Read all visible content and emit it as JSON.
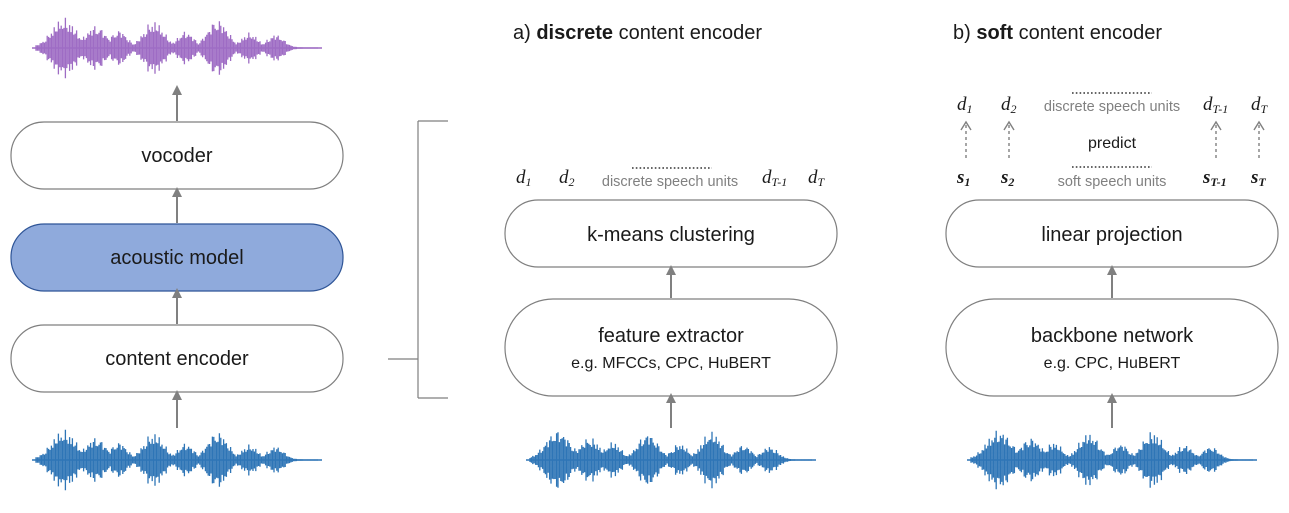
{
  "pipeline": {
    "vocoder": "vocoder",
    "acoustic_model": "acoustic model",
    "content_encoder": "content encoder"
  },
  "panel_a": {
    "prefix": "a) ",
    "bold": "discrete",
    "rest": " content encoder",
    "box_top": "k-means clustering",
    "box_bottom": "feature extractor",
    "box_bottom_sub": "e.g. MFCCs, CPC, HuBERT",
    "units_label": "discrete speech units",
    "d": "d",
    "sub_1": "1",
    "sub_2": "2",
    "sub_Tm1": "T-1",
    "sub_T": "T"
  },
  "panel_b": {
    "prefix": "b) ",
    "bold": "soft",
    "rest": " content encoder",
    "box_top": "linear projection",
    "box_bottom": "backbone network",
    "box_bottom_sub": "e.g. CPC, HuBERT",
    "discrete_units_label": "discrete speech units",
    "soft_units_label": "soft speech units",
    "predict": "predict",
    "d": "d",
    "s": "s",
    "sub_1": "1",
    "sub_2": "2",
    "sub_Tm1": "T-1",
    "sub_T": "T"
  },
  "colors": {
    "acoustic_model_fill": "#8faadc",
    "acoustic_model_stroke": "#2f5597",
    "input_waveform": "#2e75b6",
    "output_waveform": "#9e6cc4",
    "arrow": "#808080",
    "box_stroke": "#7f7f7f"
  }
}
